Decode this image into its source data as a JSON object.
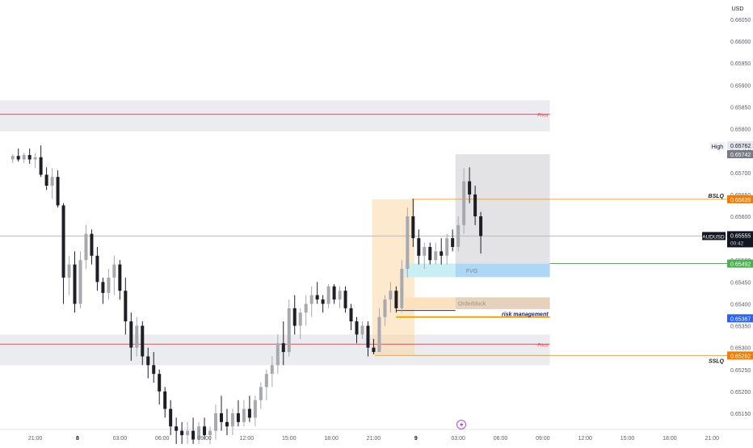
{
  "chart_data": {
    "type": "candlestick",
    "symbol": "AUDUSD",
    "currency": "USD",
    "y_ticks": [
      "0.66050",
      "0.66000",
      "0.65950",
      "0.65900",
      "0.65850",
      "0.65800",
      "0.65750",
      "0.65700",
      "0.65650",
      "0.65600",
      "0.65550",
      "0.65500",
      "0.65450",
      "0.65400",
      "0.65350",
      "0.65300",
      "0.65250",
      "0.65200",
      "0.65150"
    ],
    "x_ticks": [
      {
        "label": "21:00",
        "x": -3
      },
      {
        "label": "8",
        "x": 0,
        "bold": true
      },
      {
        "label": "03:00",
        "x": 3
      },
      {
        "label": "06:00",
        "x": 6
      },
      {
        "label": "09:00",
        "x": 9
      },
      {
        "label": "12:00",
        "x": 12
      },
      {
        "label": "15:00",
        "x": 15
      },
      {
        "label": "18:00",
        "x": 18
      },
      {
        "label": "21:00",
        "x": 21
      },
      {
        "label": "9",
        "x": 24,
        "bold": true
      },
      {
        "label": "03:00",
        "x": 27
      },
      {
        "label": "06:00",
        "x": 30
      },
      {
        "label": "09:00",
        "x": 33
      },
      {
        "label": "12:00",
        "x": 36
      },
      {
        "label": "15:00",
        "x": 39
      },
      {
        "label": "18:00",
        "x": 42
      },
      {
        "label": "21:00",
        "x": 45
      }
    ],
    "price_tags": [
      {
        "label": "High",
        "price": "",
        "kind": "plain"
      },
      {
        "label": "",
        "price": "0.65762",
        "kind": "light"
      },
      {
        "label": "",
        "price": "0.65742",
        "kind": "gray"
      },
      {
        "label": "",
        "price": "0.65639",
        "kind": "orange"
      },
      {
        "label": "AUDUSD",
        "price": "0.65555",
        "sub": "00:42",
        "kind": "dark"
      },
      {
        "label": "",
        "price": "0.65492",
        "kind": "green"
      },
      {
        "label": "",
        "price": "0.65367",
        "kind": "blue"
      },
      {
        "label": "",
        "price": "0.65282",
        "kind": "orange"
      }
    ],
    "levels": {
      "pivot_high": {
        "label": "Pivot",
        "price": 0.65833,
        "zone_top": 0.65865,
        "zone_bottom": 0.65794
      },
      "pivot_low": {
        "label": "Pivot",
        "price": 0.65308,
        "zone_top": 0.6533,
        "zone_bottom": 0.6526
      },
      "bslq": {
        "label": "BSLQ",
        "price": 0.65639
      },
      "sslq": {
        "label": "SSLQ",
        "price": 0.65282
      },
      "risk": {
        "label": "risk management",
        "price": 0.6537
      },
      "current": {
        "price": 0.65555
      }
    },
    "zones": {
      "fvg": {
        "label": "FVG",
        "top": 0.65492,
        "bottom": 0.65461
      },
      "orderblock": {
        "label": "Orderblock",
        "top": 0.65415,
        "bottom": 0.65388
      },
      "range_box": {
        "top": 0.65742,
        "bottom": 0.65492
      },
      "session_box": {
        "top": 0.65639,
        "bottom": 0.65282
      }
    },
    "candles": [
      {
        "x": -4.6,
        "o": 0.6573,
        "h": 0.65742,
        "l": 0.65722,
        "c": 0.65738
      },
      {
        "x": -4.2,
        "o": 0.65738,
        "h": 0.65755,
        "l": 0.65725,
        "c": 0.6573
      },
      {
        "x": -3.8,
        "o": 0.6573,
        "h": 0.65745,
        "l": 0.65722,
        "c": 0.6574
      },
      {
        "x": -3.4,
        "o": 0.6574,
        "h": 0.65755,
        "l": 0.6572,
        "c": 0.6573
      },
      {
        "x": -3.0,
        "o": 0.6573,
        "h": 0.65745,
        "l": 0.6571,
        "c": 0.65735
      },
      {
        "x": -2.6,
        "o": 0.65735,
        "h": 0.65762,
        "l": 0.6569,
        "c": 0.65695
      },
      {
        "x": -2.2,
        "o": 0.65695,
        "h": 0.65712,
        "l": 0.6566,
        "c": 0.6567
      },
      {
        "x": -1.8,
        "o": 0.6567,
        "h": 0.6571,
        "l": 0.6564,
        "c": 0.6569
      },
      {
        "x": -1.4,
        "o": 0.6569,
        "h": 0.65705,
        "l": 0.6562,
        "c": 0.65625
      },
      {
        "x": -1.0,
        "o": 0.65625,
        "h": 0.6563,
        "l": 0.654,
        "c": 0.6546
      },
      {
        "x": -0.6,
        "o": 0.6546,
        "h": 0.6551,
        "l": 0.6542,
        "c": 0.6549
      },
      {
        "x": -0.2,
        "o": 0.6549,
        "h": 0.6552,
        "l": 0.6538,
        "c": 0.654
      },
      {
        "x": 0.2,
        "o": 0.654,
        "h": 0.6552,
        "l": 0.6539,
        "c": 0.655
      },
      {
        "x": 0.6,
        "o": 0.655,
        "h": 0.6558,
        "l": 0.6548,
        "c": 0.6556
      },
      {
        "x": 1.0,
        "o": 0.6556,
        "h": 0.6557,
        "l": 0.6549,
        "c": 0.6551
      },
      {
        "x": 1.4,
        "o": 0.6551,
        "h": 0.6553,
        "l": 0.6543,
        "c": 0.6545
      },
      {
        "x": 1.8,
        "o": 0.6545,
        "h": 0.6546,
        "l": 0.654,
        "c": 0.65425
      },
      {
        "x": 2.2,
        "o": 0.65425,
        "h": 0.6548,
        "l": 0.6541,
        "c": 0.6546
      },
      {
        "x": 2.6,
        "o": 0.6546,
        "h": 0.6551,
        "l": 0.6542,
        "c": 0.6549
      },
      {
        "x": 3.0,
        "o": 0.6549,
        "h": 0.655,
        "l": 0.6541,
        "c": 0.6543
      },
      {
        "x": 3.4,
        "o": 0.6543,
        "h": 0.6546,
        "l": 0.6533,
        "c": 0.6536
      },
      {
        "x": 3.8,
        "o": 0.6536,
        "h": 0.6538,
        "l": 0.6527,
        "c": 0.653
      },
      {
        "x": 4.2,
        "o": 0.653,
        "h": 0.6537,
        "l": 0.6528,
        "c": 0.6535
      },
      {
        "x": 4.6,
        "o": 0.6535,
        "h": 0.6536,
        "l": 0.6526,
        "c": 0.6528
      },
      {
        "x": 5.0,
        "o": 0.6528,
        "h": 0.653,
        "l": 0.6523,
        "c": 0.6526
      },
      {
        "x": 5.4,
        "o": 0.6526,
        "h": 0.6529,
        "l": 0.6522,
        "c": 0.6524
      },
      {
        "x": 5.8,
        "o": 0.6524,
        "h": 0.6525,
        "l": 0.6517,
        "c": 0.652
      },
      {
        "x": 6.2,
        "o": 0.652,
        "h": 0.6521,
        "l": 0.6514,
        "c": 0.6516
      },
      {
        "x": 6.6,
        "o": 0.6516,
        "h": 0.6518,
        "l": 0.651,
        "c": 0.6512
      },
      {
        "x": 7.0,
        "o": 0.6512,
        "h": 0.6514,
        "l": 0.6508,
        "c": 0.6511
      },
      {
        "x": 7.4,
        "o": 0.6511,
        "h": 0.6513,
        "l": 0.6508,
        "c": 0.651
      },
      {
        "x": 7.8,
        "o": 0.651,
        "h": 0.6513,
        "l": 0.6508,
        "c": 0.6511
      },
      {
        "x": 8.2,
        "o": 0.6511,
        "h": 0.6514,
        "l": 0.6508,
        "c": 0.6509
      },
      {
        "x": 8.6,
        "o": 0.6509,
        "h": 0.6513,
        "l": 0.6508,
        "c": 0.6512
      },
      {
        "x": 9.0,
        "o": 0.6512,
        "h": 0.6514,
        "l": 0.6509,
        "c": 0.651
      },
      {
        "x": 9.4,
        "o": 0.651,
        "h": 0.6512,
        "l": 0.6508,
        "c": 0.6511
      },
      {
        "x": 9.8,
        "o": 0.6511,
        "h": 0.6517,
        "l": 0.6509,
        "c": 0.6515
      },
      {
        "x": 10.2,
        "o": 0.6515,
        "h": 0.6519,
        "l": 0.6511,
        "c": 0.6513
      },
      {
        "x": 10.6,
        "o": 0.6513,
        "h": 0.6516,
        "l": 0.651,
        "c": 0.6512
      },
      {
        "x": 11.0,
        "o": 0.6512,
        "h": 0.6516,
        "l": 0.651,
        "c": 0.6515
      },
      {
        "x": 11.4,
        "o": 0.6515,
        "h": 0.6518,
        "l": 0.6512,
        "c": 0.6513
      },
      {
        "x": 11.8,
        "o": 0.6513,
        "h": 0.6518,
        "l": 0.6512,
        "c": 0.6516
      },
      {
        "x": 12.2,
        "o": 0.6516,
        "h": 0.6519,
        "l": 0.6513,
        "c": 0.6514
      },
      {
        "x": 12.6,
        "o": 0.6514,
        "h": 0.6519,
        "l": 0.6512,
        "c": 0.6518
      },
      {
        "x": 13.0,
        "o": 0.6518,
        "h": 0.6522,
        "l": 0.6516,
        "c": 0.6521
      },
      {
        "x": 13.4,
        "o": 0.6521,
        "h": 0.6525,
        "l": 0.6518,
        "c": 0.6524
      },
      {
        "x": 13.8,
        "o": 0.6524,
        "h": 0.6528,
        "l": 0.6521,
        "c": 0.6526
      },
      {
        "x": 14.2,
        "o": 0.6526,
        "h": 0.6533,
        "l": 0.6524,
        "c": 0.6531
      },
      {
        "x": 14.6,
        "o": 0.6531,
        "h": 0.6536,
        "l": 0.6526,
        "c": 0.6529
      },
      {
        "x": 15.0,
        "o": 0.6529,
        "h": 0.6541,
        "l": 0.6528,
        "c": 0.6539
      },
      {
        "x": 15.4,
        "o": 0.6539,
        "h": 0.6542,
        "l": 0.6533,
        "c": 0.6535
      },
      {
        "x": 15.8,
        "o": 0.6535,
        "h": 0.6539,
        "l": 0.6532,
        "c": 0.6538
      },
      {
        "x": 16.2,
        "o": 0.6538,
        "h": 0.6542,
        "l": 0.6535,
        "c": 0.654
      },
      {
        "x": 16.6,
        "o": 0.654,
        "h": 0.6544,
        "l": 0.6537,
        "c": 0.6542
      },
      {
        "x": 17.0,
        "o": 0.6542,
        "h": 0.6545,
        "l": 0.654,
        "c": 0.6541
      },
      {
        "x": 17.4,
        "o": 0.6541,
        "h": 0.6542,
        "l": 0.6538,
        "c": 0.654
      },
      {
        "x": 17.8,
        "o": 0.654,
        "h": 0.65445,
        "l": 0.6539,
        "c": 0.6544
      },
      {
        "x": 18.2,
        "o": 0.6544,
        "h": 0.65445,
        "l": 0.654,
        "c": 0.6541
      },
      {
        "x": 18.6,
        "o": 0.6541,
        "h": 0.6544,
        "l": 0.6539,
        "c": 0.6543
      },
      {
        "x": 19.0,
        "o": 0.6543,
        "h": 0.6544,
        "l": 0.6538,
        "c": 0.6539
      },
      {
        "x": 19.4,
        "o": 0.6539,
        "h": 0.654,
        "l": 0.6534,
        "c": 0.6536
      },
      {
        "x": 19.8,
        "o": 0.6536,
        "h": 0.6537,
        "l": 0.6531,
        "c": 0.6533
      },
      {
        "x": 20.2,
        "o": 0.6533,
        "h": 0.6536,
        "l": 0.6532,
        "c": 0.6535
      },
      {
        "x": 20.6,
        "o": 0.6535,
        "h": 0.6536,
        "l": 0.6528,
        "c": 0.653
      },
      {
        "x": 21.0,
        "o": 0.653,
        "h": 0.6532,
        "l": 0.65285,
        "c": 0.6529
      },
      {
        "x": 21.4,
        "o": 0.6529,
        "h": 0.6539,
        "l": 0.6529,
        "c": 0.6537
      },
      {
        "x": 21.8,
        "o": 0.6537,
        "h": 0.6542,
        "l": 0.6535,
        "c": 0.6541
      },
      {
        "x": 22.2,
        "o": 0.6541,
        "h": 0.6545,
        "l": 0.6538,
        "c": 0.6543
      },
      {
        "x": 22.6,
        "o": 0.6543,
        "h": 0.6544,
        "l": 0.6538,
        "c": 0.6539
      },
      {
        "x": 23.0,
        "o": 0.6539,
        "h": 0.655,
        "l": 0.6538,
        "c": 0.6548
      },
      {
        "x": 23.4,
        "o": 0.6548,
        "h": 0.6562,
        "l": 0.6546,
        "c": 0.656
      },
      {
        "x": 23.8,
        "o": 0.656,
        "h": 0.6564,
        "l": 0.6553,
        "c": 0.6555
      },
      {
        "x": 24.2,
        "o": 0.6555,
        "h": 0.6557,
        "l": 0.6549,
        "c": 0.6551
      },
      {
        "x": 24.6,
        "o": 0.6551,
        "h": 0.6554,
        "l": 0.6548,
        "c": 0.6553
      },
      {
        "x": 25.0,
        "o": 0.6553,
        "h": 0.6554,
        "l": 0.6549,
        "c": 0.655
      },
      {
        "x": 25.4,
        "o": 0.655,
        "h": 0.6554,
        "l": 0.6549,
        "c": 0.6552
      },
      {
        "x": 25.8,
        "o": 0.6552,
        "h": 0.6555,
        "l": 0.6549,
        "c": 0.6551
      },
      {
        "x": 26.2,
        "o": 0.6551,
        "h": 0.6556,
        "l": 0.6549,
        "c": 0.6555
      },
      {
        "x": 26.6,
        "o": 0.6555,
        "h": 0.6557,
        "l": 0.6552,
        "c": 0.6553
      },
      {
        "x": 27.0,
        "o": 0.6553,
        "h": 0.656,
        "l": 0.6552,
        "c": 0.6558
      },
      {
        "x": 27.4,
        "o": 0.6558,
        "h": 0.6571,
        "l": 0.6556,
        "c": 0.6568
      },
      {
        "x": 27.8,
        "o": 0.6568,
        "h": 0.65712,
        "l": 0.6563,
        "c": 0.6565
      },
      {
        "x": 28.2,
        "o": 0.6565,
        "h": 0.6567,
        "l": 0.6558,
        "c": 0.656
      },
      {
        "x": 28.6,
        "o": 0.656,
        "h": 0.6561,
        "l": 0.65515,
        "c": 0.65555
      }
    ],
    "ylim": [
      0.65125,
      0.66075
    ],
    "xlim": [
      -5,
      47
    ]
  }
}
